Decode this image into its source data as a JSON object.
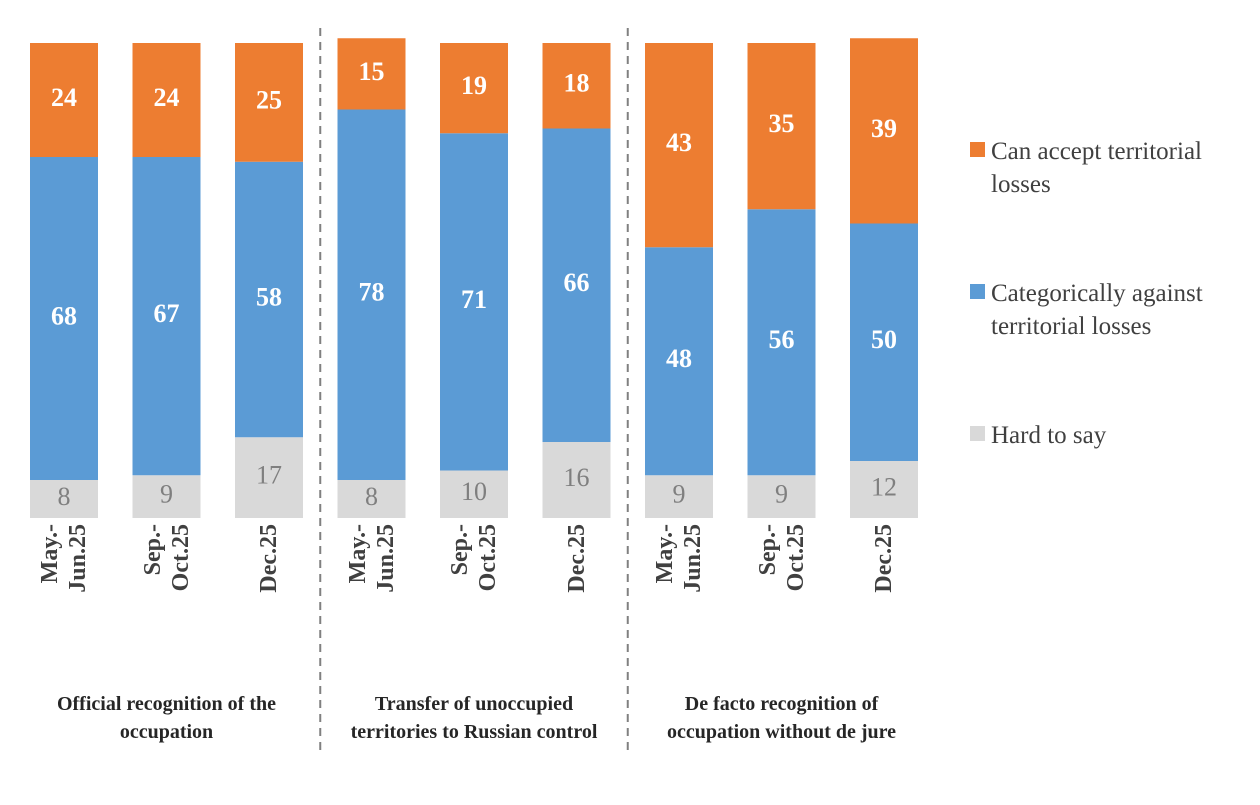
{
  "chart_data": {
    "type": "stacked-bar",
    "categories": [
      "May.-\nJun.25",
      "Sep.-\nOct.25",
      "Dec.25",
      "May.-\nJun.25",
      "Sep.-\nOct.25",
      "Dec.25",
      "May.-\nJun.25",
      "Sep.-\nOct.25",
      "Dec.25"
    ],
    "groups": [
      "Official recognition of the occupation",
      "Transfer of unoccupied territories to Russian control",
      "De facto recognition of occupation without de jure"
    ],
    "series": [
      {
        "name": "Can accept territorial losses",
        "color": "#ed7d31",
        "label_color": "#ffffff",
        "values": [
          24,
          24,
          25,
          15,
          19,
          18,
          43,
          35,
          39
        ]
      },
      {
        "name": "Categorically against territorial losses",
        "color": "#5b9bd5",
        "label_color": "#ffffff",
        "values": [
          68,
          67,
          58,
          78,
          71,
          66,
          48,
          56,
          50
        ]
      },
      {
        "name": "Hard to say",
        "color": "#d9d9d9",
        "label_color": "#7f7f7f",
        "values": [
          8,
          9,
          17,
          8,
          10,
          16,
          9,
          9,
          12
        ]
      }
    ],
    "ylim": [
      0,
      100
    ],
    "legend": "right"
  }
}
